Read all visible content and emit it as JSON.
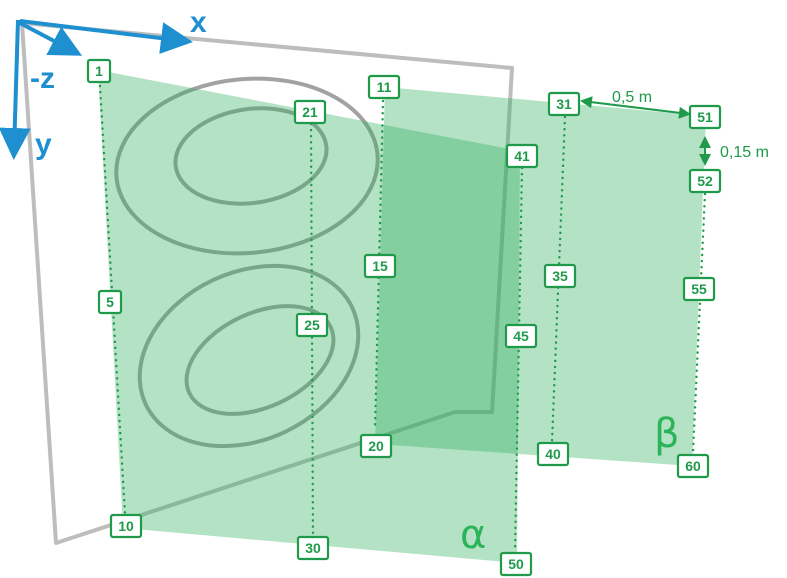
{
  "axes": {
    "x_label": "x",
    "y_label": "y",
    "z_label": "-z",
    "axis_color": "#1e90d0"
  },
  "planes": {
    "alpha_label": "α",
    "beta_label": "β",
    "plane_color": "#2eae5e"
  },
  "spacing": {
    "horizontal": "0,5 m",
    "vertical": "0,15 m"
  },
  "point_labels": [
    "1",
    "5",
    "10",
    "11",
    "15",
    "20",
    "21",
    "25",
    "30",
    "31",
    "35",
    "40",
    "41",
    "45",
    "50",
    "51",
    "52",
    "55",
    "60"
  ]
}
